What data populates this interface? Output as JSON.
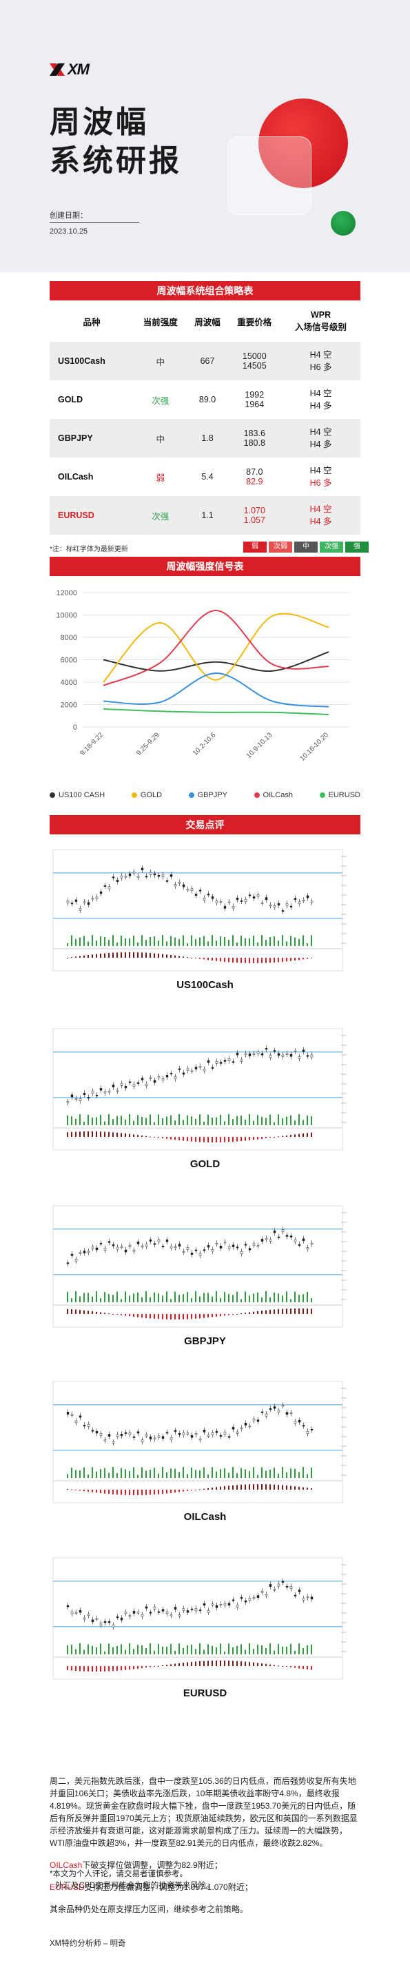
{
  "header": {
    "logo_text": "XM",
    "title_line1": "周波幅",
    "title_line2": "系统研报",
    "date_label": "创建日期：",
    "date_value": "2023.10.25"
  },
  "strategy": {
    "title": "周波幅系统组合策略表",
    "headers": [
      "品种",
      "当前强度",
      "周波幅",
      "重要价格",
      "WPR",
      "入场信号级别"
    ],
    "rows": [
      {
        "symbol": "US100Cash",
        "strength": "中",
        "range": "667",
        "price1": "15000",
        "price2": "14505",
        "sig1": "H4 空",
        "sig2": "H6 多",
        "strength_color": "#333333",
        "symbol_color": "#111111",
        "price1_color": "#222222",
        "price2_color": "#222222",
        "sig1_color": "#222222",
        "sig2_color": "#222222"
      },
      {
        "symbol": "GOLD",
        "strength": "次强",
        "range": "89.0",
        "price1": "1992",
        "price2": "1964",
        "sig1": "H4 空",
        "sig2": "H4 多",
        "strength_color": "#2aa14a",
        "symbol_color": "#111111",
        "price1_color": "#222222",
        "price2_color": "#222222",
        "sig1_color": "#222222",
        "sig2_color": "#222222"
      },
      {
        "symbol": "GBPJPY",
        "strength": "中",
        "range": "1.8",
        "price1": "183.6",
        "price2": "180.8",
        "sig1": "H4 空",
        "sig2": "H4 多",
        "strength_color": "#333333",
        "symbol_color": "#111111",
        "price1_color": "#222222",
        "price2_color": "#222222",
        "sig1_color": "#222222",
        "sig2_color": "#222222"
      },
      {
        "symbol": "OILCash",
        "strength": "弱",
        "range": "5.4",
        "price1": "87.0",
        "price2": "82.9",
        "sig1": "H4 空",
        "sig2": "H6 多",
        "strength_color": "#d91f26",
        "symbol_color": "#111111",
        "price1_color": "#222222",
        "price2_color": "#d91f26",
        "sig1_color": "#222222",
        "sig2_color": "#d91f26"
      },
      {
        "symbol": "EURUSD",
        "strength": "次强",
        "range": "1.1",
        "price1": "1.070",
        "price2": "1.057",
        "sig1": "H4 空",
        "sig2": "H4 多",
        "strength_color": "#2aa14a",
        "symbol_color": "#d91f26",
        "price1_color": "#d91f26",
        "price2_color": "#d91f26",
        "sig1_color": "#d91f26",
        "sig2_color": "#d91f26"
      }
    ],
    "note": "*注：标红字体为最新更新",
    "legend": [
      {
        "label": "弱",
        "color": "#d91f26"
      },
      {
        "label": "次弱",
        "color": "#e8504f"
      },
      {
        "label": "中",
        "color": "#555555"
      },
      {
        "label": "次强",
        "color": "#3fb35f"
      },
      {
        "label": "强",
        "color": "#1e8f3c"
      }
    ]
  },
  "signal_chart": {
    "title": "周波幅强度信号表"
  },
  "chart_data": {
    "type": "line",
    "categories": [
      "9.18-9.22",
      "9.25-9.29",
      "10.2-10.6",
      "10.9-10.13",
      "10.16-10.20"
    ],
    "ylim": [
      0,
      12000
    ],
    "yticks": [
      0,
      2000,
      4000,
      6000,
      8000,
      10000,
      12000
    ],
    "grid": true,
    "legend_position": "bottom",
    "series": [
      {
        "name": "US100 CASH",
        "color": "#333333",
        "values": [
          6000,
          5000,
          5800,
          5000,
          6700
        ]
      },
      {
        "name": "GOLD",
        "color": "#f2b90f",
        "values": [
          4000,
          9300,
          4200,
          9900,
          8900
        ]
      },
      {
        "name": "GBPJPY",
        "color": "#3b8fe0",
        "values": [
          2300,
          2200,
          4800,
          2300,
          1800
        ]
      },
      {
        "name": "OILCash",
        "color": "#e23b4e",
        "values": [
          3700,
          5700,
          10400,
          5600,
          5400
        ]
      },
      {
        "name": "EURUSD",
        "color": "#3fbf5a",
        "values": [
          1600,
          1400,
          1300,
          1300,
          1100
        ]
      }
    ]
  },
  "review": {
    "title": "交易点评",
    "panels": [
      "US100Cash",
      "GOLD",
      "GBPJPY",
      "OILCash",
      "EURUSD"
    ]
  },
  "commentary": {
    "para1": "周二，美元指数先跌后涨，盘中一度跌至105.36的日内低点，而后强势收复所有失地并重回106关口；美债收益率先涨后跌，10年期美债收益率盼守4.8%，最终收报4.819%。现货黄金在欧盘时段大幅下挫，盘中一度跌至1953.70美元的日内低点，随后有所反弹并重回1970美元上方；现货原油延续跌势，欧元区和英国的一系列数据显示经济放缓并有衰退可能，这对能源需求前景构成了压力。延续周一的大幅跌势，WTI原油盘中跌超3%，并一度跌至82.91美元的日内低点，最终收跌2.82%。",
    "oil_name": "OILCash",
    "oil_text": "下破支撑位做调整，调整为82.9附近；",
    "eur_name": "EURUSD",
    "eur_text": "支撑压力位做调整，调整为1.057-1.070附近；",
    "others": "其余品种仍处在原支撑压力区间，继续参考之前策略。",
    "disclaimer1": "*本文为个人评论，请交易者谨慎参考。",
    "disclaimer2": "外汇及CFD交易可能会为您的投资带来风险。",
    "analyst": "XM特约分析师 – 明奇"
  }
}
